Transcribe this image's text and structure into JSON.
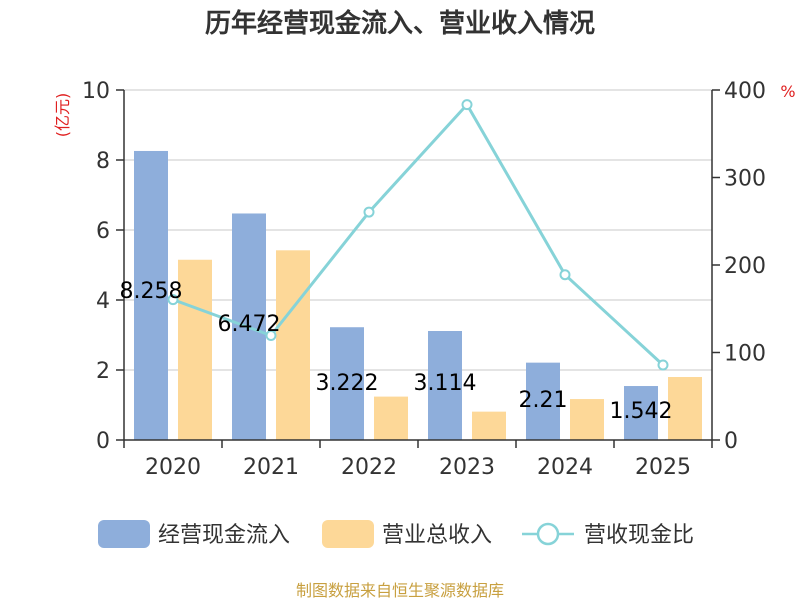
{
  "chart_data": {
    "type": "bar",
    "title": "历年经营现金流入、营业收入情况",
    "categories": [
      "2020",
      "2021",
      "2022",
      "2023",
      "2024",
      "2025"
    ],
    "left_axis": {
      "unit": "(亿元)",
      "ylim": [
        0,
        10
      ],
      "ticks": [
        "0",
        "2",
        "4",
        "6",
        "8",
        "10"
      ]
    },
    "right_axis": {
      "unit": "%",
      "ylim": [
        0,
        400
      ],
      "ticks": [
        "0",
        "100",
        "200",
        "300",
        "400"
      ]
    },
    "series": [
      {
        "name": "经营现金流入",
        "kind": "bar",
        "axis": "left",
        "color": "#8eaedb",
        "values": [
          8.258,
          6.472,
          3.222,
          3.114,
          2.21,
          1.542
        ],
        "labels": [
          "8.258",
          "6.472",
          "3.222",
          "3.114",
          "2.21",
          "1.542"
        ]
      },
      {
        "name": "营业总收入",
        "kind": "bar",
        "axis": "left",
        "color": "#fdd898",
        "values": [
          5.15,
          5.42,
          1.24,
          0.81,
          1.17,
          1.8
        ]
      },
      {
        "name": "营收现金比",
        "kind": "line",
        "axis": "right",
        "color": "#86d3d8",
        "values": [
          160.4,
          119.4,
          260.5,
          383.3,
          188.9,
          85.7
        ]
      }
    ],
    "grid": true,
    "legend": "bottom",
    "source": "制图数据来自恒生聚源数据库"
  }
}
